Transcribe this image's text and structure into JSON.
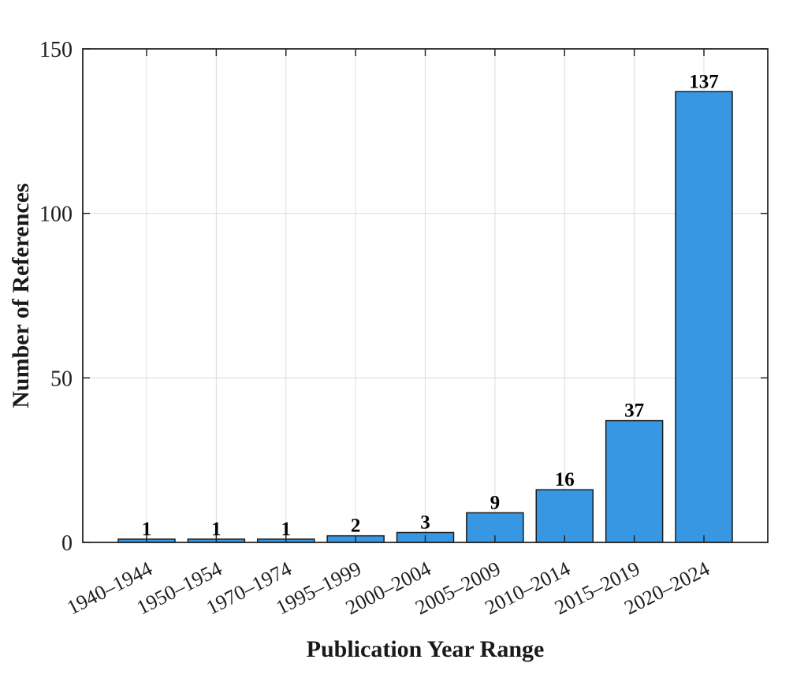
{
  "figure": {
    "background": "#ffffff"
  },
  "chart_data": {
    "type": "bar",
    "title": "",
    "xlabel": "Publication Year Range",
    "ylabel": "Number of References",
    "categories": [
      "1940–1944",
      "1950–1954",
      "1970–1974",
      "1995–1999",
      "2000–2004",
      "2005–2009",
      "2010–2014",
      "2015–2019",
      "2020–2024"
    ],
    "values": [
      1,
      1,
      1,
      2,
      3,
      9,
      16,
      37,
      137
    ],
    "bar_value_labels": [
      "1",
      "1",
      "1",
      "2",
      "3",
      "9",
      "16",
      "37",
      "137"
    ],
    "ylim": [
      0,
      150
    ],
    "yticks": [
      0,
      50,
      100,
      150
    ],
    "grid": "on",
    "legend": "none",
    "x_tick_rotation_deg": 27,
    "colors": {
      "bar_fill": "#3797E2",
      "bar_edge": "#1a1a1a",
      "axis": "#262626",
      "grid": "#dcdcdc",
      "tick_label": "#1f1f1f",
      "value_label": "#000000"
    }
  }
}
